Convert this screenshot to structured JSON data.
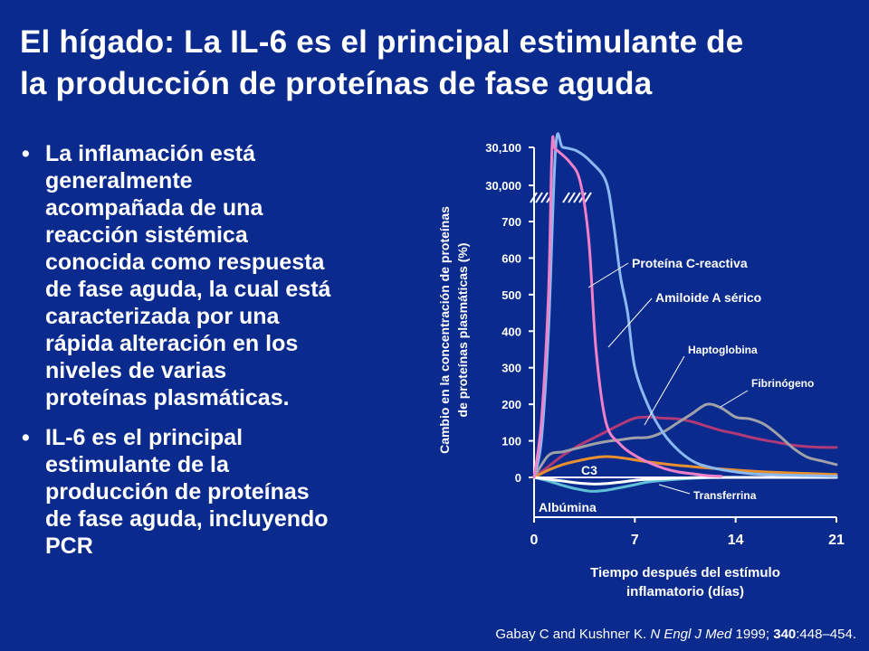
{
  "slide": {
    "title_lines": [
      "El hígado: La IL-6 es el principal estimulante de",
      "la producción de proteínas de fase aguda"
    ],
    "bullets": [
      {
        "lines": [
          "La inflamación está",
          "generalmente",
          "acompañada de una",
          "reacción sistémica",
          "conocida como respuesta",
          "de fase aguda, la cual está",
          "caracterizada por una",
          "rápida alteración en los",
          "niveles de varias",
          "proteínas plasmáticas."
        ]
      },
      {
        "lines": [
          "IL-6 es el principal",
          "estimulante de la",
          "producción de proteínas",
          "de fase aguda, incluyendo",
          "PCR"
        ]
      }
    ],
    "citation": {
      "authors": "Gabay C and Kushner K. ",
      "journal": "N Engl J Med",
      "year": " 1999; ",
      "volume": "340",
      "pages": ":448–454."
    }
  },
  "chart_data": {
    "type": "line",
    "xlabel_lines": [
      "Tiempo después del estímulo",
      "inflamatorio (días)"
    ],
    "ylabel_lines": [
      "Cambio en la concentración de proteínas",
      "de proteínas plasmáticas (%)"
    ],
    "x_ticks": [
      0,
      7,
      14,
      21
    ],
    "x_tick_labels": [
      "0",
      "7",
      "14",
      "21"
    ],
    "xlim": [
      0,
      21
    ],
    "y_ticks": [
      0,
      100,
      200,
      300,
      400,
      500,
      600,
      700
    ],
    "y_tick_labels": [
      "0",
      "100",
      "200",
      "300",
      "400",
      "500",
      "600",
      "700"
    ],
    "y_break_ticks": [
      "30,000",
      "30,100"
    ],
    "ylim": [
      0,
      700
    ],
    "axis_break": true,
    "grid": false,
    "legend": "inline labels",
    "series": [
      {
        "name": "Proteína C-reactiva",
        "color": "#f080c8",
        "x": [
          0,
          0.5,
          1,
          1.25,
          1.5,
          2.5,
          3.2,
          3.8,
          4.3,
          5,
          6,
          7,
          8,
          9,
          10,
          11,
          12,
          13
        ],
        "y": [
          0,
          150,
          500,
          30100,
          30095,
          30060,
          30010,
          650,
          350,
          150,
          90,
          60,
          40,
          25,
          15,
          10,
          5,
          3
        ]
      },
      {
        "name": "Amiloide A sérico",
        "color": "#8ab8f0",
        "x": [
          0,
          0.5,
          1,
          1.5,
          2,
          3,
          4,
          5,
          5.5,
          6,
          6.5,
          7,
          8,
          9,
          10,
          11,
          12,
          14,
          16,
          21
        ],
        "y": [
          0,
          100,
          400,
          30100,
          30100,
          30090,
          30060,
          30010,
          700,
          550,
          450,
          300,
          190,
          120,
          75,
          45,
          30,
          15,
          8,
          3
        ]
      },
      {
        "name": "Haptoglobina",
        "color": "#b03a78",
        "x": [
          0,
          1,
          2,
          3,
          4,
          5,
          6,
          7,
          8,
          9,
          10,
          11,
          12,
          13,
          14,
          15,
          16,
          17,
          18,
          19,
          20,
          21
        ],
        "y": [
          0,
          30,
          60,
          85,
          105,
          125,
          145,
          162,
          165,
          162,
          160,
          152,
          140,
          128,
          120,
          110,
          102,
          95,
          88,
          84,
          82,
          82
        ]
      },
      {
        "name": "Fibrinógeno",
        "color": "#a0a0a8",
        "x": [
          0,
          1,
          2,
          3,
          4,
          5,
          6,
          7,
          8,
          9,
          10,
          11,
          12,
          13,
          14,
          15,
          16,
          17,
          18,
          19,
          20,
          21
        ],
        "y": [
          0,
          60,
          70,
          80,
          90,
          98,
          103,
          108,
          110,
          125,
          150,
          175,
          200,
          190,
          165,
          160,
          145,
          115,
          80,
          55,
          45,
          35
        ]
      },
      {
        "name": "C3",
        "color": "#e89030",
        "x": [
          0,
          1,
          2,
          3,
          4,
          5,
          6,
          7,
          8,
          10,
          12,
          14,
          16,
          18,
          21
        ],
        "y": [
          0,
          20,
          35,
          45,
          53,
          57,
          54,
          48,
          42,
          33,
          26,
          20,
          15,
          12,
          8
        ]
      },
      {
        "name": "Transferrina",
        "color": "#60c0d8",
        "x": [
          0,
          1,
          2,
          3,
          4,
          5,
          6,
          7,
          8,
          10,
          12,
          14,
          16,
          18,
          21
        ],
        "y": [
          0,
          -10,
          -22,
          -32,
          -38,
          -35,
          -28,
          -20,
          -12,
          -5,
          -1,
          0,
          0,
          0,
          0
        ]
      },
      {
        "name": "Albúmina",
        "color": "#ffffff",
        "x": [
          0,
          1,
          2,
          3,
          4,
          5,
          6,
          7,
          8,
          10,
          12,
          14,
          16,
          18,
          21
        ],
        "y": [
          0,
          -5,
          -10,
          -15,
          -18,
          -17,
          -13,
          -8,
          -5,
          -2,
          0,
          0,
          0,
          0,
          0
        ]
      }
    ],
    "annotations": [
      {
        "text": "Proteína C-reactiva",
        "series": "Proteína C-reactiva"
      },
      {
        "text": "Amiloide A sérico",
        "series": "Amiloide A sérico"
      },
      {
        "text": "Haptoglobina",
        "series": "Haptoglobina"
      },
      {
        "text": "Fibrinógeno",
        "series": "Fibrinógeno"
      },
      {
        "text": "C3",
        "series": "C3"
      },
      {
        "text": "Transferrina",
        "series": "Transferrina"
      },
      {
        "text": "Albúmina",
        "series": "Albúmina"
      }
    ]
  }
}
